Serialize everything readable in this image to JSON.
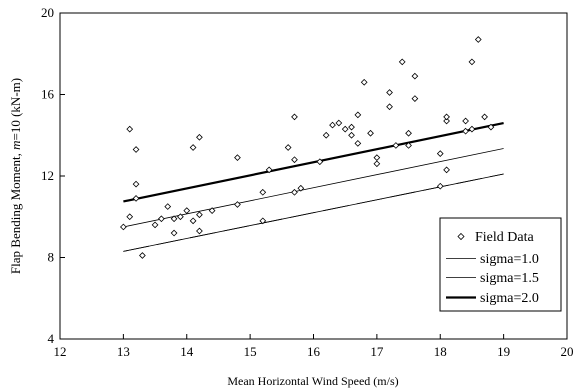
{
  "chart_data": {
    "type": "scatter",
    "xlabel": "Mean Horizontal Wind Speed (m/s)",
    "ylabel_prefix": "Flap Bending Moment, ",
    "ylabel_italic": "m",
    "ylabel_suffix": "=10 (kN-m)",
    "xlim": [
      12,
      20
    ],
    "ylim": [
      4,
      20
    ],
    "xticks": [
      12,
      13,
      14,
      15,
      16,
      17,
      18,
      19,
      20
    ],
    "yticks": [
      4,
      8,
      12,
      16,
      20
    ],
    "grid": false,
    "legend_position": "bottom-right",
    "series": [
      {
        "name": "Field Data",
        "kind": "scatter",
        "marker": "diamond-open",
        "points": [
          [
            13.0,
            9.5
          ],
          [
            13.1,
            14.3
          ],
          [
            13.1,
            10.0
          ],
          [
            13.2,
            11.6
          ],
          [
            13.2,
            10.9
          ],
          [
            13.2,
            13.3
          ],
          [
            13.3,
            8.1
          ],
          [
            13.5,
            9.6
          ],
          [
            13.6,
            9.9
          ],
          [
            13.7,
            10.5
          ],
          [
            13.8,
            9.2
          ],
          [
            13.8,
            9.9
          ],
          [
            13.9,
            10.0
          ],
          [
            14.0,
            10.3
          ],
          [
            14.1,
            13.4
          ],
          [
            14.1,
            9.8
          ],
          [
            14.2,
            13.9
          ],
          [
            14.2,
            9.3
          ],
          [
            14.2,
            10.1
          ],
          [
            14.4,
            10.3
          ],
          [
            14.8,
            12.9
          ],
          [
            14.8,
            10.6
          ],
          [
            15.2,
            9.8
          ],
          [
            15.2,
            11.2
          ],
          [
            15.3,
            12.3
          ],
          [
            15.6,
            13.4
          ],
          [
            15.7,
            12.8
          ],
          [
            15.7,
            11.2
          ],
          [
            15.7,
            14.9
          ],
          [
            15.8,
            11.4
          ],
          [
            16.1,
            12.7
          ],
          [
            16.2,
            14.0
          ],
          [
            16.3,
            14.5
          ],
          [
            16.4,
            14.6
          ],
          [
            16.5,
            14.3
          ],
          [
            16.6,
            14.0
          ],
          [
            16.6,
            14.4
          ],
          [
            16.7,
            15.0
          ],
          [
            16.7,
            13.6
          ],
          [
            16.8,
            16.6
          ],
          [
            16.9,
            14.1
          ],
          [
            17.0,
            12.9
          ],
          [
            17.0,
            12.6
          ],
          [
            17.2,
            16.1
          ],
          [
            17.2,
            15.4
          ],
          [
            17.3,
            13.5
          ],
          [
            17.4,
            17.6
          ],
          [
            17.5,
            13.5
          ],
          [
            17.5,
            14.1
          ],
          [
            17.6,
            16.9
          ],
          [
            17.6,
            15.8
          ],
          [
            18.0,
            13.1
          ],
          [
            18.1,
            12.3
          ],
          [
            18.0,
            11.5
          ],
          [
            18.1,
            14.7
          ],
          [
            18.1,
            14.9
          ],
          [
            18.4,
            14.2
          ],
          [
            18.4,
            14.7
          ],
          [
            18.5,
            14.3
          ],
          [
            18.5,
            17.6
          ],
          [
            18.6,
            18.7
          ],
          [
            18.7,
            14.9
          ],
          [
            18.8,
            14.4
          ]
        ]
      },
      {
        "name": "sigma=1.0",
        "kind": "line",
        "dash": "none",
        "width": 0.8,
        "x": [
          13,
          19
        ],
        "y": [
          8.3,
          12.1
        ]
      },
      {
        "name": "sigma=1.5",
        "kind": "line",
        "dash": "none",
        "width": 0.8,
        "x": [
          13,
          19
        ],
        "y": [
          9.5,
          13.35
        ]
      },
      {
        "name": "sigma=2.0",
        "kind": "line",
        "dash": "none",
        "width": 2.2,
        "x": [
          13,
          19
        ],
        "y": [
          10.75,
          14.6
        ]
      }
    ],
    "extra_lines": [
      {
        "kind": "dashed",
        "x": [
          13,
          19
        ],
        "y": [
          8.3,
          12.1
        ]
      }
    ]
  }
}
